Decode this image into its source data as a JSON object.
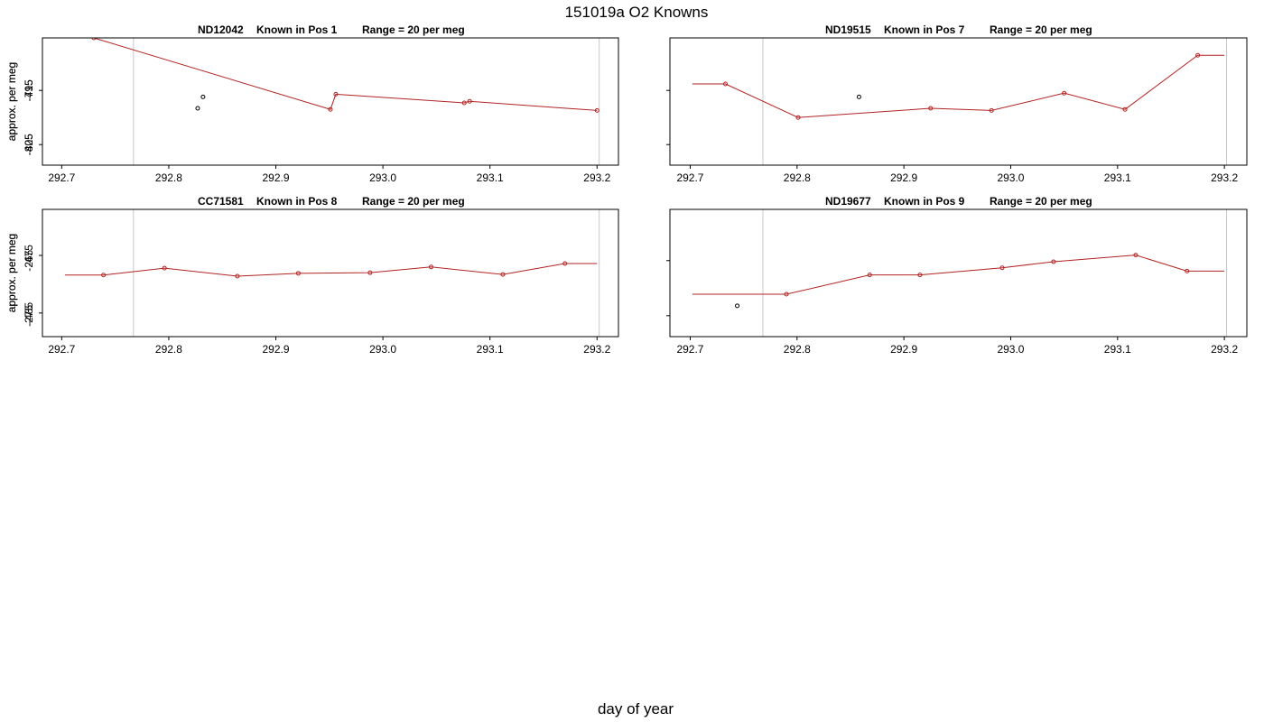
{
  "title": "151019a   O2 Knowns",
  "xlabel": "day of year",
  "chart_data": [
    {
      "type": "line",
      "title_parts": [
        "ND12042",
        "Known in Pos 1",
        "Range = 20 per meg"
      ],
      "ylabel": "approx. per meg",
      "xlim": [
        292.682,
        293.22
      ],
      "ylim": [
        -428.8,
        -405.3
      ],
      "xticks": [
        292.7,
        292.8,
        292.9,
        {
          "value": 293,
          "label": "293.0"
        },
        293.1,
        293.2
      ],
      "yticks": [
        -415,
        -425
      ],
      "vlines": [
        292.767,
        293.202
      ],
      "line_extent": [
        292.73,
        293.2
      ],
      "series": [
        {
          "color": "#b22222",
          "x": [
            292.73,
            292.951,
            292.956,
            293.076,
            293.081,
            293.2
          ],
          "values": [
            -405.3,
            -418.5,
            -415.7,
            -417.3,
            -417.0,
            -418.7
          ]
        },
        {
          "color": "#000000",
          "x": [
            292.827,
            292.832
          ],
          "values": [
            -418.3,
            -416.2
          ]
        }
      ]
    },
    {
      "type": "line",
      "title_parts": [
        "ND19515",
        "Known in Pos 7",
        "Range = 20 per meg"
      ],
      "ylabel": "approx. per meg",
      "xlim": [
        292.681,
        293.221
      ],
      "ylim": [
        -808.8,
        -785.3
      ],
      "xticks": [
        292.7,
        292.8,
        292.9,
        {
          "value": 293,
          "label": "293.0"
        },
        293.1,
        293.2
      ],
      "yticks": [
        -795,
        -805
      ],
      "vlines": [
        292.768,
        293.202
      ],
      "line_extent": [
        292.702,
        293.2
      ],
      "series": [
        {
          "color": "#b22222",
          "x": [
            292.733,
            292.801,
            292.925,
            292.982,
            293.05,
            293.107,
            293.175
          ],
          "values": [
            -793.8,
            -800.0,
            -798.3,
            -798.7,
            -795.5,
            -798.5,
            -788.5
          ]
        },
        {
          "color": "#000000",
          "x": [
            292.858
          ],
          "values": [
            -796.2
          ]
        }
      ]
    },
    {
      "type": "line",
      "title_parts": [
        "CC71581",
        "Known in Pos 8",
        "Range = 20 per meg"
      ],
      "ylabel": "approx. per meg",
      "xlim": [
        292.682,
        293.22
      ],
      "ylim": [
        -489.1,
        -467.0
      ],
      "xticks": [
        292.7,
        292.8,
        292.9,
        {
          "value": 293,
          "label": "293.0"
        },
        293.1,
        293.2
      ],
      "yticks": [
        -475,
        -485
      ],
      "vlines": [
        292.767,
        293.202
      ],
      "line_extent": [
        292.703,
        293.2
      ],
      "series": [
        {
          "color": "#b22222",
          "x": [
            292.739,
            292.796,
            292.864,
            292.921,
            292.988,
            293.045,
            293.112,
            293.17
          ],
          "values": [
            -478.4,
            -477.2,
            -478.6,
            -478.1,
            -478.0,
            -477.0,
            -478.3,
            -476.4
          ]
        }
      ]
    },
    {
      "type": "line",
      "title_parts": [
        "ND19677",
        "Known in Pos 9",
        "Range = 20 per meg"
      ],
      "ylabel": "approx. per meg",
      "xlim": [
        292.681,
        293.221
      ],
      "ylim": [
        -278.8,
        -255.7
      ],
      "xticks": [
        292.7,
        292.8,
        292.9,
        {
          "value": 293,
          "label": "293.0"
        },
        293.1,
        293.2
      ],
      "yticks": [
        -265,
        -275
      ],
      "vlines": [
        292.768,
        293.202
      ],
      "line_extent": [
        292.702,
        293.2
      ],
      "series": [
        {
          "color": "#b22222",
          "x": [
            292.79,
            292.868,
            292.915,
            292.992,
            293.04,
            293.117,
            293.165
          ],
          "values": [
            -271.1,
            -267.6,
            -267.6,
            -266.3,
            -265.2,
            -264.0,
            -266.9
          ]
        },
        {
          "color": "#000000",
          "x": [
            292.744
          ],
          "values": [
            -273.2
          ]
        }
      ]
    }
  ]
}
